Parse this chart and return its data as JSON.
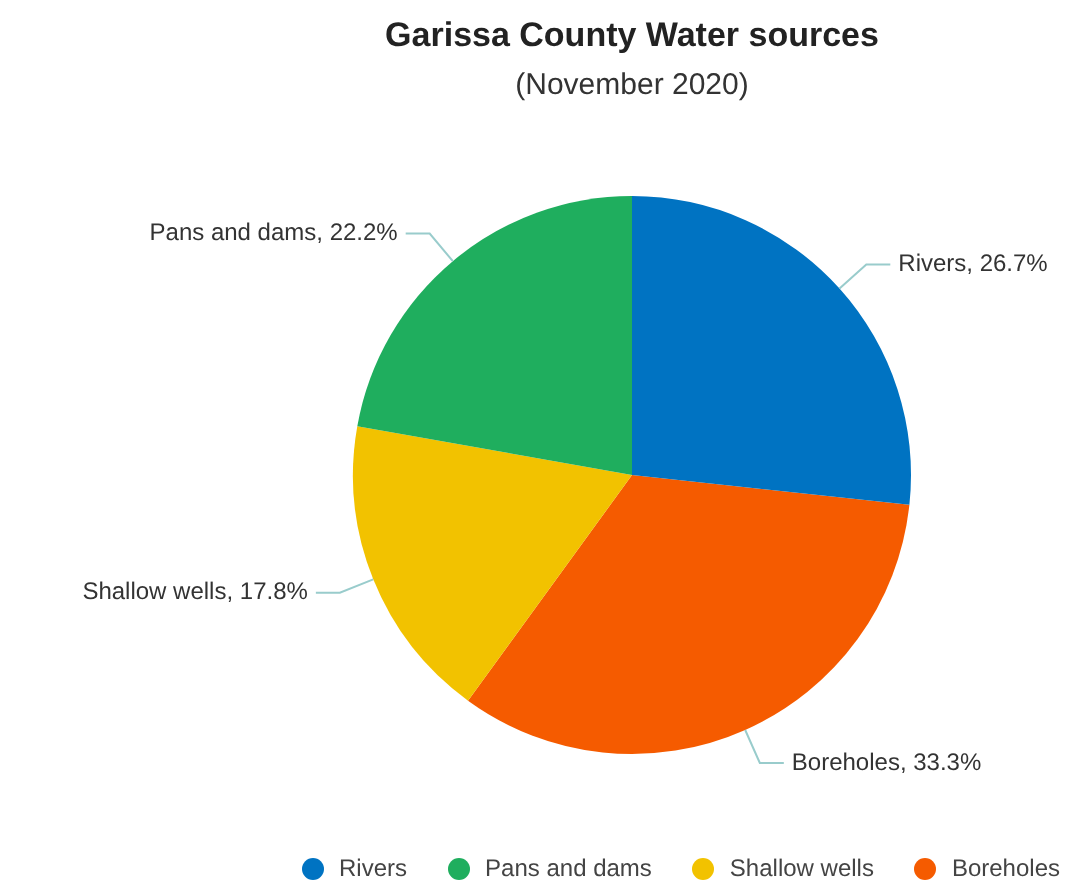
{
  "chart_data": {
    "type": "pie",
    "title": "Garissa County Water sources",
    "subtitle": "(November 2020)",
    "categories": [
      "Rivers",
      "Pans and dams",
      "Shallow wells",
      "Boreholes"
    ],
    "values": [
      26.7,
      22.2,
      17.8,
      33.3
    ],
    "colors": [
      "#0073c2",
      "#1fae5e",
      "#f2c200",
      "#f55b00"
    ],
    "value_labels": [
      "Rivers, 26.7%",
      "Pans and dams, 22.2%",
      "Shallow wells, 17.8%",
      "Boreholes, 33.3%"
    ],
    "legend": "bottom right"
  }
}
